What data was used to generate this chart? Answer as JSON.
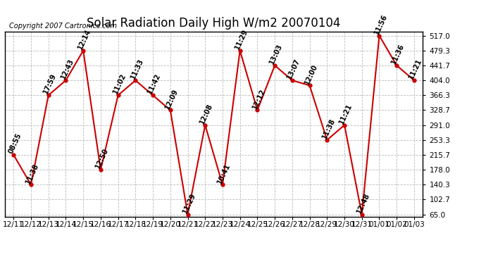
{
  "title": "Solar Radiation Daily High W/m2 20070104",
  "copyright": "Copyright 2007 Cartronics.com",
  "x_labels": [
    "12/11",
    "12/12",
    "12/13",
    "12/14",
    "12/15",
    "12/16",
    "12/17",
    "12/18",
    "12/19",
    "12/20",
    "12/21",
    "12/22",
    "12/23",
    "12/24",
    "12/25",
    "12/26",
    "12/27",
    "12/28",
    "12/29",
    "12/30",
    "12/31",
    "01/01",
    "01/02",
    "01/03"
  ],
  "y_values": [
    215.7,
    140.3,
    366.3,
    404.0,
    479.3,
    178.0,
    366.3,
    404.0,
    366.3,
    328.7,
    65.0,
    291.0,
    140.3,
    479.3,
    328.7,
    441.7,
    404.0,
    391.0,
    253.3,
    291.0,
    65.0,
    517.0,
    441.7,
    404.0
  ],
  "time_labels": [
    "08:55",
    "11:38",
    "17:59",
    "12:43",
    "12:14",
    "12:50",
    "11:02",
    "11:33",
    "11:42",
    "12:09",
    "11:29",
    "12:08",
    "10:41",
    "11:29",
    "12:12",
    "13:03",
    "13:07",
    "12:00",
    "11:38",
    "11:21",
    "12:48",
    "11:56",
    "11:36",
    "11:21"
  ],
  "y_ticks": [
    65.0,
    102.7,
    140.3,
    178.0,
    215.7,
    253.3,
    291.0,
    328.7,
    366.3,
    404.0,
    441.7,
    479.3,
    517.0
  ],
  "line_color": "#cc0000",
  "marker_color": "#cc0000",
  "background_color": "#ffffff",
  "grid_color": "#bbbbbb",
  "title_fontsize": 12,
  "copyright_fontsize": 7,
  "label_fontsize": 7,
  "tick_fontsize": 7.5
}
